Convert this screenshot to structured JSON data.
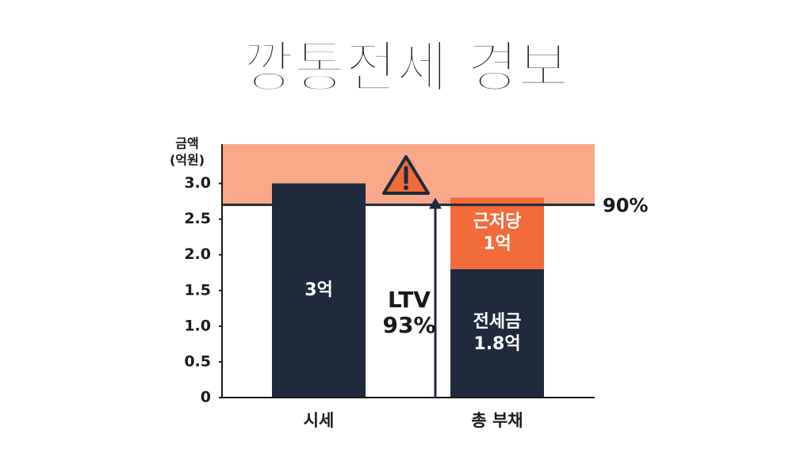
{
  "chart_data": {
    "type": "bar",
    "title": "깡통전세 경보",
    "y_label_lines": [
      "금액",
      "(억원)"
    ],
    "categories": [
      "시세",
      "총 부채"
    ],
    "bars": [
      {
        "category": 0,
        "value": 3,
        "value_label": "3억",
        "color": "#1f2a3c"
      }
    ],
    "stack": {
      "category": 1,
      "series": [
        {
          "name": "전세금",
          "values": [
            1.8
          ],
          "value_labels": [
            "1.8억"
          ],
          "color": "#1f2a3c"
        },
        {
          "name": "근저당",
          "values": [
            1
          ],
          "value_labels": [
            "1억"
          ],
          "color": "#f26b3a"
        }
      ]
    },
    "threshold": {
      "value": 2.7,
      "label": "90%",
      "zone_color": "#f9a88a"
    },
    "ltv_lines": [
      "LTV",
      "93%"
    ],
    "ylim": [
      0,
      3.55
    ],
    "yticks": [
      0,
      0.5,
      {
        "value": 1,
        "label": "1.0"
      },
      1.5,
      {
        "value": 2,
        "label": "2.0"
      },
      2.5,
      {
        "value": 3,
        "label": "3.0"
      }
    ]
  }
}
